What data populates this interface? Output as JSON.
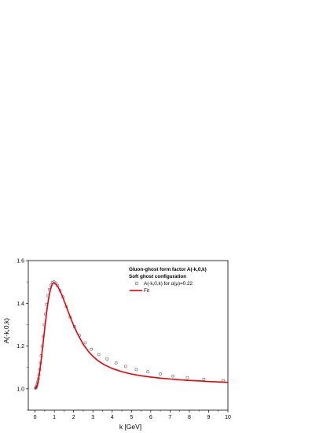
{
  "chart_data": {
    "type": "line",
    "title": "",
    "xlabel": "k [GeV]",
    "ylabel": "A(-k,0,k)",
    "xlim": [
      -0.35,
      10
    ],
    "ylim": [
      0.9,
      1.6
    ],
    "xticks": [
      0,
      1,
      2,
      3,
      4,
      5,
      6,
      7,
      8,
      9,
      10
    ],
    "yticks": [
      1.0,
      1.2,
      1.4,
      1.6
    ],
    "xtick_labels": [
      "0",
      "1",
      "2",
      "3",
      "4",
      "5",
      "6",
      "7",
      "8",
      "9",
      "10"
    ],
    "ytick_labels": [
      "1.0",
      "1.2",
      "1.4",
      "1.6"
    ],
    "grid": false,
    "legend": {
      "position": "top-right",
      "title_lines": [
        "Gluon-ghost form factor A(-k,0,k)",
        "Soft ghost configuration"
      ]
    },
    "series": [
      {
        "name": "A(-k,0,k) for α(μ)=0.22",
        "kind": "scatter",
        "marker": "open-circle",
        "color": "#555555",
        "x": [
          0.02,
          0.05,
          0.08,
          0.11,
          0.14,
          0.17,
          0.2,
          0.24,
          0.28,
          0.32,
          0.37,
          0.42,
          0.48,
          0.54,
          0.6,
          0.67,
          0.74,
          0.82,
          0.9,
          0.98,
          1.07,
          1.17,
          1.3,
          1.45,
          1.62,
          1.82,
          2.05,
          2.3,
          2.6,
          2.92,
          3.3,
          3.73,
          4.2,
          4.7,
          5.25,
          5.85,
          6.5,
          7.15,
          7.9,
          8.75,
          9.75
        ],
        "y": [
          1.003,
          1.006,
          1.011,
          1.02,
          1.032,
          1.047,
          1.065,
          1.09,
          1.12,
          1.155,
          1.2,
          1.245,
          1.3,
          1.35,
          1.395,
          1.435,
          1.465,
          1.485,
          1.497,
          1.5,
          1.495,
          1.483,
          1.46,
          1.43,
          1.385,
          1.335,
          1.29,
          1.25,
          1.215,
          1.185,
          1.16,
          1.14,
          1.12,
          1.105,
          1.09,
          1.08,
          1.07,
          1.06,
          1.052,
          1.045,
          1.038
        ]
      },
      {
        "name": "Fit",
        "kind": "line",
        "color": "#e8000b",
        "x": [
          0.0,
          0.05,
          0.1,
          0.15,
          0.2,
          0.25,
          0.3,
          0.35,
          0.4,
          0.45,
          0.5,
          0.55,
          0.6,
          0.65,
          0.7,
          0.75,
          0.8,
          0.85,
          0.9,
          0.95,
          1.0,
          1.1,
          1.2,
          1.3,
          1.4,
          1.5,
          1.6,
          1.8,
          2.0,
          2.2,
          2.5,
          2.8,
          3.0,
          3.3,
          3.6,
          4.0,
          4.5,
          5.0,
          5.5,
          6.0,
          6.5,
          7.0,
          7.5,
          8.0,
          8.5,
          9.0,
          9.5,
          10.0
        ],
        "y": [
          1.0,
          1.004,
          1.015,
          1.033,
          1.057,
          1.087,
          1.121,
          1.159,
          1.199,
          1.24,
          1.281,
          1.32,
          1.357,
          1.391,
          1.42,
          1.445,
          1.465,
          1.48,
          1.49,
          1.495,
          1.495,
          1.488,
          1.475,
          1.457,
          1.437,
          1.414,
          1.39,
          1.342,
          1.297,
          1.258,
          1.208,
          1.171,
          1.152,
          1.129,
          1.112,
          1.095,
          1.08,
          1.069,
          1.061,
          1.055,
          1.05,
          1.046,
          1.042,
          1.039,
          1.037,
          1.034,
          1.032,
          1.03
        ]
      }
    ]
  }
}
